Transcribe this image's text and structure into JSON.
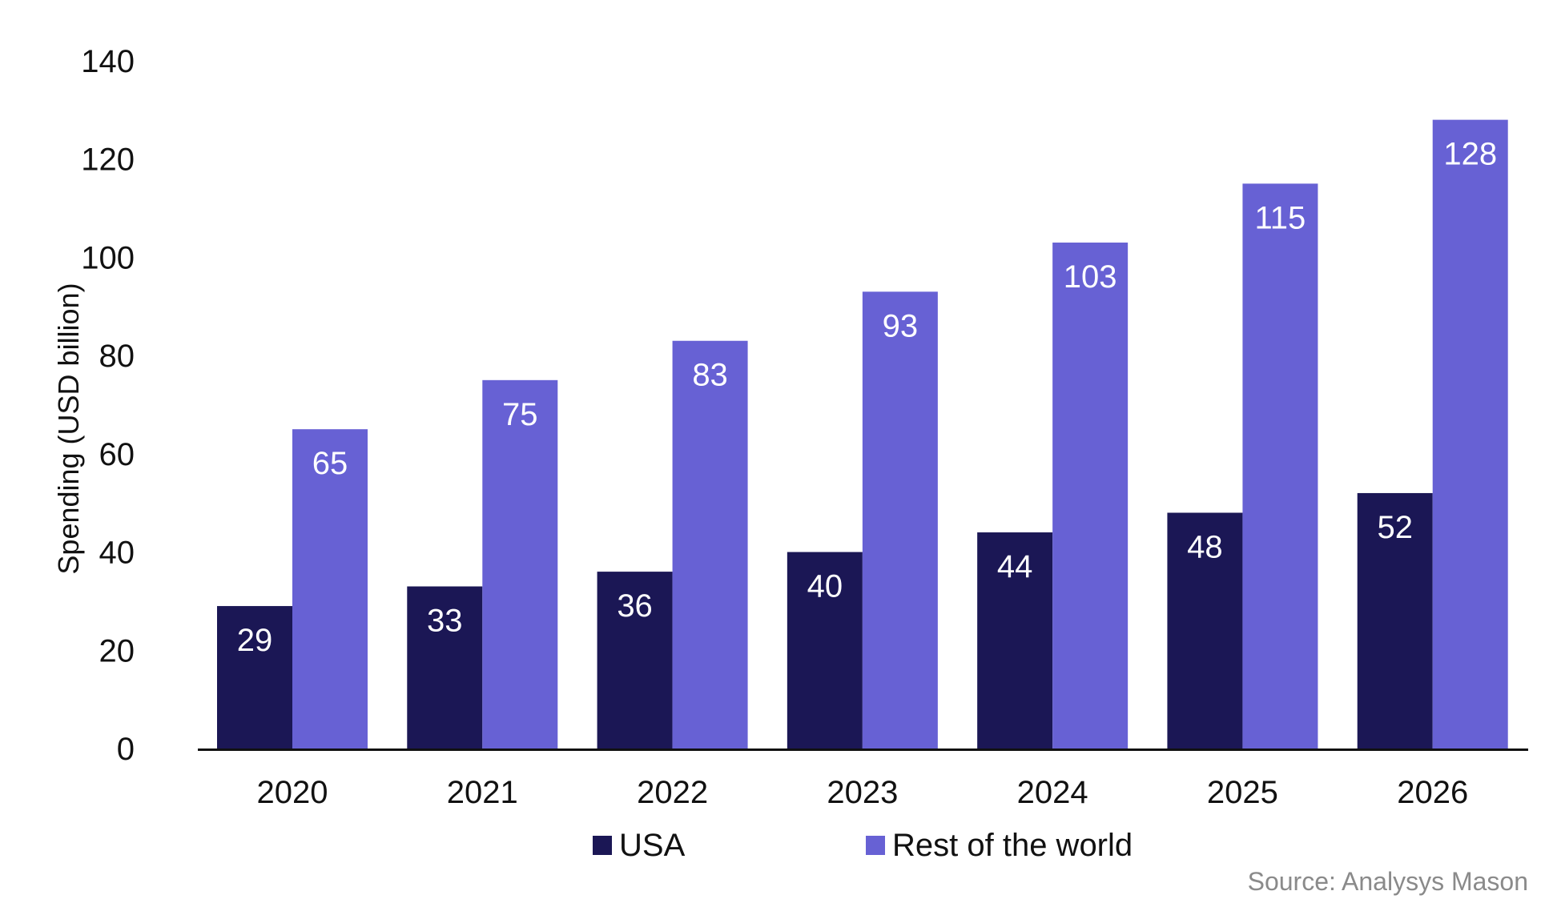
{
  "chart_data": {
    "type": "bar",
    "categories": [
      "2020",
      "2021",
      "2022",
      "2023",
      "2024",
      "2025",
      "2026"
    ],
    "series": [
      {
        "name": "USA",
        "color": "#1b1755",
        "values": [
          29,
          33,
          36,
          40,
          44,
          48,
          52
        ],
        "labels": [
          "29",
          "33",
          "36",
          "40",
          "44",
          "48",
          "52"
        ]
      },
      {
        "name": "Rest of the world",
        "color": "#6761d4",
        "values": [
          65,
          75,
          83,
          93,
          103,
          115,
          128
        ],
        "labels": [
          "65",
          "75",
          "83",
          "93",
          "103",
          "115",
          "128"
        ]
      }
    ],
    "title": "",
    "xlabel": "",
    "ylabel": "Spending (USD billion)",
    "ylim": [
      0,
      140
    ],
    "yticks": [
      0,
      20,
      40,
      60,
      80,
      100,
      120,
      140
    ],
    "ytick_labels": [
      "0",
      "20",
      "40",
      "60",
      "80",
      "100",
      "120",
      "140"
    ],
    "grid": false,
    "legend_position": "bottom-center"
  },
  "source": "Source: Analysys Mason"
}
